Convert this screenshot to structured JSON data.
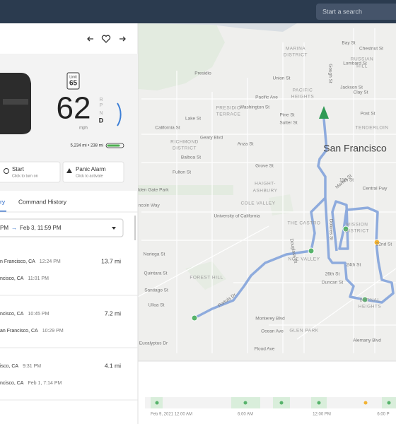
{
  "header": {
    "search_placeholder": "Start a search"
  },
  "vehicle": {
    "speed_limit_label": "Limit",
    "speed_limit": "65",
    "speed": "62",
    "speed_unit": "mph",
    "gears": [
      "R",
      "N",
      "P",
      "D"
    ],
    "odometer": "5,234 mi • 238 mi",
    "start_button": {
      "title": "Start",
      "subtitle": "Click to turn on"
    },
    "panic_button": {
      "title": "Panic Alarm",
      "subtitle": "Click to activate"
    }
  },
  "tabs": [
    "ry",
    "Command History"
  ],
  "date_range": {
    "start": "PM",
    "end": "Feb 3, 11:59 PM"
  },
  "trips": [
    {
      "from": "n Francisco, CA",
      "from_time": "12:24 PM",
      "distance": "13.7 mi",
      "to": "ncisco, CA",
      "to_time": "11:01 PM"
    },
    {
      "from": "ncisco, CA",
      "from_time": "10:45 PM",
      "distance": "7.2 mi",
      "to": "an Francisco, CA",
      "to_time": "10:29 PM"
    },
    {
      "from": "isco, CA",
      "from_time": "9:31 PM",
      "distance": "4.1 mi",
      "to": "ncisco, CA",
      "to_time": "Feb 1, 7:14 PM"
    }
  ],
  "map": {
    "city": "San Francisco",
    "labels": [
      "MARINA",
      "DISTRICT",
      "Presidio",
      "Union St",
      "Bay St",
      "Chestnut St",
      "Lombard St",
      "RUSSIAN",
      "HILL",
      "Jackson St",
      "Clay St",
      "Washington St",
      "Pacific Ave",
      "PACIFIC",
      "HEIGHTS",
      "Pine St",
      "Sutter St",
      "Post St",
      "TENDERLOIN",
      "Lake St",
      "California St",
      "PRESIDIO",
      "TERRACE",
      "Geary Blvd",
      "RICHMOND",
      "DISTRICT",
      "Balboa St",
      "Fulton St",
      "Anza St",
      "Grove St",
      "Market St",
      "Central Fwy",
      "11th St",
      "HAIGHT-",
      "ASHBURY",
      "olden Gate Park",
      "incoln Way",
      "University of California",
      "COLE VALLEY",
      "THE CASTRO",
      "MISSION",
      "DISTRICT",
      "22nd St",
      "NOE VALLEY",
      "24th St",
      "26th St",
      "Duncan St",
      "FOREST HILL",
      "Portola Dr",
      "Noriega St",
      "Quintara St",
      "Santiago St",
      "Ulloa St",
      "Monterey Blvd",
      "Ocean Ave",
      "Flood Ave",
      "GLEN PARK",
      "Alemany Blvd",
      "Eucalyptus Dr",
      "BERNAL",
      "HEIGHTS",
      "Dolores St",
      "Gough St",
      "Douglass St"
    ]
  },
  "timeline": {
    "labels": [
      "Feb 9, 2021 12:00 AM",
      "6:00 AM",
      "12:00 PM",
      "6:00 P"
    ]
  }
}
